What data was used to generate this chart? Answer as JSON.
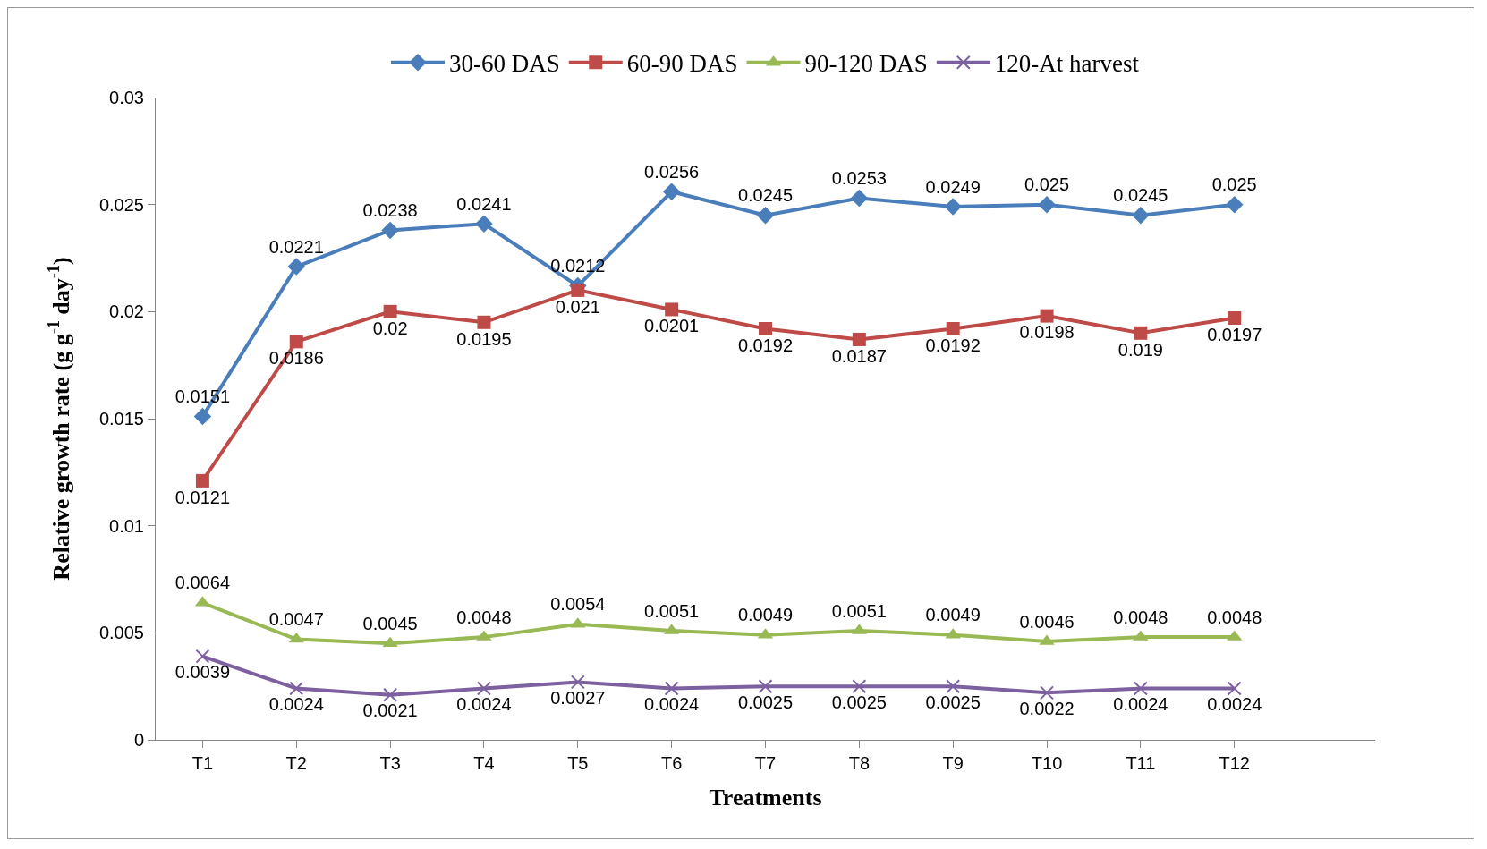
{
  "chart_data": {
    "type": "line",
    "xlabel": "Treatments",
    "ylabel": "Relative growth rate (g g$^{-1}$ day$^{-1}$)",
    "categories": [
      "T1",
      "T2",
      "T3",
      "T4",
      "T5",
      "T6",
      "T7",
      "T8",
      "T9",
      "T10",
      "T11",
      "T12"
    ],
    "series": [
      {
        "name": "30-60 DAS",
        "color": "#4a7ebb",
        "marker": "diamond",
        "values": [
          0.0151,
          0.0221,
          0.0238,
          0.0241,
          0.0212,
          0.0256,
          0.0245,
          0.0253,
          0.0249,
          0.025,
          0.0245,
          0.025
        ]
      },
      {
        "name": "60-90 DAS",
        "color": "#be4b48",
        "marker": "square",
        "values": [
          0.0121,
          0.0186,
          0.02,
          0.0195,
          0.021,
          0.0201,
          0.0192,
          0.0187,
          0.0192,
          0.0198,
          0.019,
          0.0197
        ]
      },
      {
        "name": "90-120 DAS",
        "color": "#98b954",
        "marker": "triangle",
        "values": [
          0.0064,
          0.0047,
          0.0045,
          0.0048,
          0.0054,
          0.0051,
          0.0049,
          0.0051,
          0.0049,
          0.0046,
          0.0048,
          0.0048
        ]
      },
      {
        "name": "120-At harvest",
        "color": "#7d60a0",
        "marker": "cross",
        "values": [
          0.0039,
          0.0024,
          0.0021,
          0.0024,
          0.0027,
          0.0024,
          0.0025,
          0.0025,
          0.0025,
          0.0022,
          0.0024,
          0.0024
        ]
      }
    ],
    "ylim": [
      0,
      0.03
    ],
    "yticks": [
      0,
      0.005,
      0.01,
      0.015,
      0.02,
      0.025,
      0.03
    ],
    "grid": false,
    "legend": "top",
    "data_labels": true,
    "line_style": "solid"
  }
}
